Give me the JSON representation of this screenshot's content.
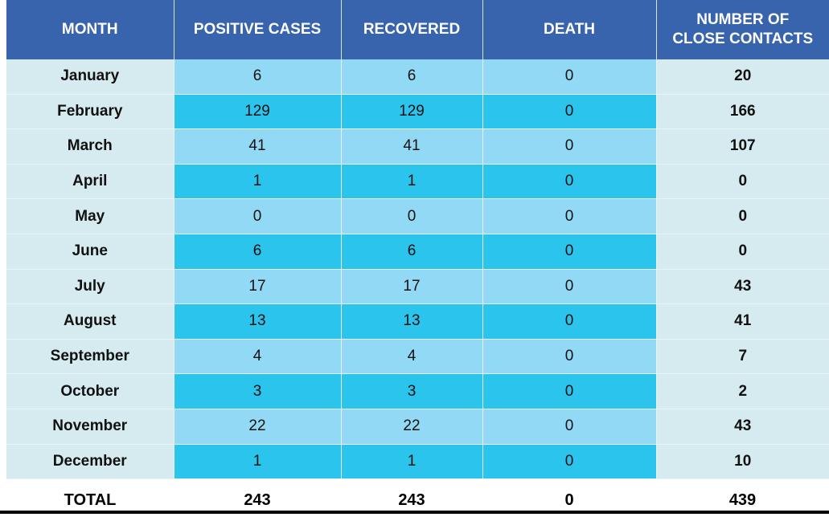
{
  "headers": {
    "month": "MONTH",
    "positive": "POSITIVE CASES",
    "recovered": "RECOVERED",
    "death": "DEATH",
    "close_line1": "NUMBER OF",
    "close_line2": "CLOSE CONTACTS"
  },
  "rows": [
    {
      "month": "January",
      "positive": "6",
      "recovered": "6",
      "death": "0",
      "close": "20"
    },
    {
      "month": "February",
      "positive": "129",
      "recovered": "129",
      "death": "0",
      "close": "166"
    },
    {
      "month": "March",
      "positive": "41",
      "recovered": "41",
      "death": "0",
      "close": "107"
    },
    {
      "month": "April",
      "positive": "1",
      "recovered": "1",
      "death": "0",
      "close": "0"
    },
    {
      "month": "May",
      "positive": "0",
      "recovered": "0",
      "death": "0",
      "close": "0"
    },
    {
      "month": "June",
      "positive": "6",
      "recovered": "6",
      "death": "0",
      "close": "0"
    },
    {
      "month": "July",
      "positive": "17",
      "recovered": "17",
      "death": "0",
      "close": "43"
    },
    {
      "month": "August",
      "positive": "13",
      "recovered": "13",
      "death": "0",
      "close": "41"
    },
    {
      "month": "September",
      "positive": "4",
      "recovered": "4",
      "death": "0",
      "close": "7"
    },
    {
      "month": "October",
      "positive": "3",
      "recovered": "3",
      "death": "0",
      "close": "2"
    },
    {
      "month": "November",
      "positive": "22",
      "recovered": "22",
      "death": "0",
      "close": "43"
    },
    {
      "month": "December",
      "positive": "1",
      "recovered": "1",
      "death": "0",
      "close": "10"
    }
  ],
  "total": {
    "label": "TOTAL",
    "positive": "243",
    "recovered": "243",
    "death": "0",
    "close": "439"
  },
  "colors": {
    "header_bg": "#3863ad",
    "row_light": "#91d9f4",
    "row_dark": "#2bc4ec",
    "side_col_bg": "#d5ebef"
  },
  "chart_data": {
    "type": "table",
    "columns": [
      "MONTH",
      "POSITIVE CASES",
      "RECOVERED",
      "DEATH",
      "NUMBER OF CLOSE CONTACTS"
    ],
    "rows": [
      [
        "January",
        6,
        6,
        0,
        20
      ],
      [
        "February",
        129,
        129,
        0,
        166
      ],
      [
        "March",
        41,
        41,
        0,
        107
      ],
      [
        "April",
        1,
        1,
        0,
        0
      ],
      [
        "May",
        0,
        0,
        0,
        0
      ],
      [
        "June",
        6,
        6,
        0,
        0
      ],
      [
        "July",
        17,
        17,
        0,
        43
      ],
      [
        "August",
        13,
        13,
        0,
        41
      ],
      [
        "September",
        4,
        4,
        0,
        7
      ],
      [
        "October",
        3,
        3,
        0,
        2
      ],
      [
        "November",
        22,
        22,
        0,
        43
      ],
      [
        "December",
        1,
        1,
        0,
        10
      ]
    ],
    "total": [
      "TOTAL",
      243,
      243,
      0,
      439
    ]
  }
}
